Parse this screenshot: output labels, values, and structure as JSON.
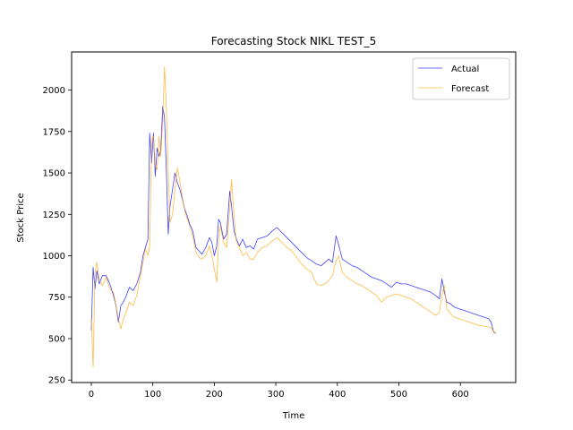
{
  "chart_data": {
    "type": "line",
    "title": "Forecasting Stock NIKL TEST_5",
    "xlabel": "Time",
    "ylabel": "Stock Price",
    "xlim": [
      -32,
      690
    ],
    "ylim": [
      235,
      2230
    ],
    "xticks": [
      0,
      100,
      200,
      300,
      400,
      500,
      600
    ],
    "yticks": [
      250,
      500,
      750,
      1000,
      1250,
      1500,
      1750,
      2000
    ],
    "legend_position": "top-right",
    "grid": false,
    "series": [
      {
        "name": "Actual",
        "color": "#0000ff",
        "points": [
          [
            0,
            550
          ],
          [
            3,
            930
          ],
          [
            6,
            800
          ],
          [
            9,
            910
          ],
          [
            13,
            830
          ],
          [
            18,
            880
          ],
          [
            24,
            880
          ],
          [
            30,
            830
          ],
          [
            36,
            760
          ],
          [
            40,
            700
          ],
          [
            44,
            600
          ],
          [
            48,
            700
          ],
          [
            52,
            720
          ],
          [
            57,
            760
          ],
          [
            62,
            810
          ],
          [
            68,
            790
          ],
          [
            74,
            830
          ],
          [
            80,
            900
          ],
          [
            84,
            1000
          ],
          [
            88,
            1050
          ],
          [
            92,
            1100
          ],
          [
            95,
            1740
          ],
          [
            98,
            1560
          ],
          [
            101,
            1740
          ],
          [
            104,
            1480
          ],
          [
            107,
            1650
          ],
          [
            110,
            1600
          ],
          [
            113,
            1640
          ],
          [
            116,
            1900
          ],
          [
            119,
            1840
          ],
          [
            122,
            1520
          ],
          [
            125,
            1130
          ],
          [
            128,
            1300
          ],
          [
            132,
            1400
          ],
          [
            136,
            1500
          ],
          [
            140,
            1440
          ],
          [
            144,
            1400
          ],
          [
            148,
            1340
          ],
          [
            152,
            1280
          ],
          [
            156,
            1240
          ],
          [
            160,
            1190
          ],
          [
            165,
            1150
          ],
          [
            170,
            1050
          ],
          [
            175,
            1030
          ],
          [
            180,
            1010
          ],
          [
            186,
            1050
          ],
          [
            192,
            1110
          ],
          [
            196,
            1080
          ],
          [
            200,
            1000
          ],
          [
            204,
            1060
          ],
          [
            207,
            1220
          ],
          [
            210,
            1200
          ],
          [
            215,
            1100
          ],
          [
            220,
            1130
          ],
          [
            225,
            1390
          ],
          [
            228,
            1300
          ],
          [
            232,
            1150
          ],
          [
            236,
            1100
          ],
          [
            241,
            1060
          ],
          [
            246,
            1100
          ],
          [
            252,
            1050
          ],
          [
            258,
            1060
          ],
          [
            264,
            1040
          ],
          [
            270,
            1100
          ],
          [
            278,
            1110
          ],
          [
            286,
            1120
          ],
          [
            294,
            1150
          ],
          [
            302,
            1170
          ],
          [
            310,
            1140
          ],
          [
            318,
            1110
          ],
          [
            326,
            1080
          ],
          [
            334,
            1050
          ],
          [
            342,
            1020
          ],
          [
            350,
            990
          ],
          [
            358,
            970
          ],
          [
            366,
            950
          ],
          [
            374,
            940
          ],
          [
            380,
            960
          ],
          [
            386,
            980
          ],
          [
            392,
            960
          ],
          [
            398,
            1120
          ],
          [
            402,
            1070
          ],
          [
            408,
            980
          ],
          [
            416,
            960
          ],
          [
            424,
            940
          ],
          [
            432,
            930
          ],
          [
            440,
            910
          ],
          [
            448,
            890
          ],
          [
            456,
            870
          ],
          [
            464,
            860
          ],
          [
            472,
            850
          ],
          [
            480,
            830
          ],
          [
            488,
            810
          ],
          [
            496,
            840
          ],
          [
            504,
            830
          ],
          [
            512,
            830
          ],
          [
            520,
            820
          ],
          [
            528,
            810
          ],
          [
            536,
            800
          ],
          [
            544,
            790
          ],
          [
            552,
            780
          ],
          [
            560,
            760
          ],
          [
            566,
            740
          ],
          [
            570,
            860
          ],
          [
            574,
            780
          ],
          [
            578,
            720
          ],
          [
            584,
            710
          ],
          [
            590,
            690
          ],
          [
            598,
            680
          ],
          [
            606,
            670
          ],
          [
            614,
            660
          ],
          [
            622,
            650
          ],
          [
            630,
            640
          ],
          [
            638,
            630
          ],
          [
            646,
            620
          ],
          [
            650,
            600
          ],
          [
            654,
            540
          ],
          [
            658,
            530
          ]
        ]
      },
      {
        "name": "Forecast",
        "color": "#ffa500",
        "points": [
          [
            0,
            620
          ],
          [
            3,
            330
          ],
          [
            6,
            900
          ],
          [
            9,
            960
          ],
          [
            13,
            860
          ],
          [
            18,
            820
          ],
          [
            24,
            870
          ],
          [
            30,
            800
          ],
          [
            36,
            780
          ],
          [
            40,
            700
          ],
          [
            44,
            620
          ],
          [
            48,
            560
          ],
          [
            52,
            620
          ],
          [
            57,
            660
          ],
          [
            62,
            720
          ],
          [
            68,
            700
          ],
          [
            74,
            760
          ],
          [
            80,
            880
          ],
          [
            84,
            960
          ],
          [
            88,
            1040
          ],
          [
            92,
            1000
          ],
          [
            95,
            1060
          ],
          [
            98,
            1700
          ],
          [
            101,
            1720
          ],
          [
            104,
            1550
          ],
          [
            107,
            1520
          ],
          [
            110,
            1720
          ],
          [
            113,
            1600
          ],
          [
            116,
            1800
          ],
          [
            119,
            2140
          ],
          [
            122,
            1900
          ],
          [
            125,
            1500
          ],
          [
            128,
            1200
          ],
          [
            132,
            1250
          ],
          [
            136,
            1400
          ],
          [
            140,
            1530
          ],
          [
            144,
            1450
          ],
          [
            148,
            1350
          ],
          [
            152,
            1270
          ],
          [
            156,
            1220
          ],
          [
            160,
            1180
          ],
          [
            165,
            1120
          ],
          [
            170,
            1020
          ],
          [
            175,
            990
          ],
          [
            180,
            980
          ],
          [
            186,
            1000
          ],
          [
            192,
            1060
          ],
          [
            196,
            1000
          ],
          [
            200,
            920
          ],
          [
            204,
            840
          ],
          [
            207,
            1100
          ],
          [
            210,
            1180
          ],
          [
            215,
            1080
          ],
          [
            220,
            1050
          ],
          [
            225,
            1280
          ],
          [
            228,
            1460
          ],
          [
            232,
            1240
          ],
          [
            236,
            1080
          ],
          [
            241,
            1050
          ],
          [
            246,
            1000
          ],
          [
            252,
            1020
          ],
          [
            258,
            980
          ],
          [
            264,
            980
          ],
          [
            270,
            1020
          ],
          [
            278,
            1050
          ],
          [
            286,
            1060
          ],
          [
            294,
            1090
          ],
          [
            302,
            1110
          ],
          [
            310,
            1080
          ],
          [
            318,
            1050
          ],
          [
            326,
            1030
          ],
          [
            334,
            990
          ],
          [
            342,
            950
          ],
          [
            350,
            920
          ],
          [
            358,
            900
          ],
          [
            366,
            830
          ],
          [
            374,
            820
          ],
          [
            380,
            830
          ],
          [
            386,
            850
          ],
          [
            392,
            880
          ],
          [
            398,
            970
          ],
          [
            402,
            1000
          ],
          [
            408,
            900
          ],
          [
            416,
            870
          ],
          [
            424,
            850
          ],
          [
            432,
            830
          ],
          [
            440,
            820
          ],
          [
            448,
            800
          ],
          [
            456,
            780
          ],
          [
            464,
            760
          ],
          [
            472,
            720
          ],
          [
            480,
            750
          ],
          [
            488,
            760
          ],
          [
            496,
            770
          ],
          [
            504,
            760
          ],
          [
            512,
            750
          ],
          [
            520,
            740
          ],
          [
            528,
            720
          ],
          [
            536,
            700
          ],
          [
            544,
            680
          ],
          [
            552,
            660
          ],
          [
            560,
            640
          ],
          [
            566,
            660
          ],
          [
            570,
            760
          ],
          [
            574,
            820
          ],
          [
            578,
            680
          ],
          [
            584,
            650
          ],
          [
            590,
            630
          ],
          [
            598,
            620
          ],
          [
            606,
            610
          ],
          [
            614,
            600
          ],
          [
            622,
            590
          ],
          [
            630,
            580
          ],
          [
            638,
            575
          ],
          [
            646,
            570
          ],
          [
            650,
            565
          ],
          [
            654,
            545
          ],
          [
            658,
            530
          ]
        ]
      }
    ]
  }
}
